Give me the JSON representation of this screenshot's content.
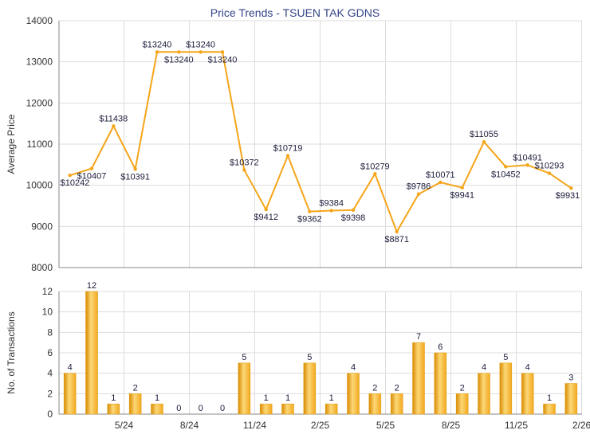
{
  "colors": {
    "line": "#f5a519",
    "bar": "#f2a81d",
    "bar_light": "#fcd878",
    "bar_dark": "#d98a00"
  },
  "chart_data": [
    {
      "type": "line",
      "title": "Price Trends - TSUEN TAK GDNS",
      "ylabel": "Average Price",
      "ylim": [
        8000,
        14000
      ],
      "yticks": [
        8000,
        9000,
        10000,
        11000,
        12000,
        13000,
        14000
      ],
      "xticks": [
        "5/24",
        "8/24",
        "11/24",
        "2/25",
        "5/25",
        "8/25",
        "11/25",
        "2/26"
      ],
      "grid": true,
      "values": [
        10242,
        10407,
        11438,
        10391,
        13240,
        13240,
        13240,
        13240,
        10372,
        9412,
        10719,
        9362,
        9384,
        9398,
        10279,
        8871,
        9786,
        10071,
        9941,
        11055,
        10452,
        10491,
        10293,
        9931
      ],
      "labels": [
        "$10242",
        "$10407",
        "$11438",
        "$10391",
        "$13240",
        "$13240",
        "$13240",
        "$13240",
        "$10372",
        "$9412",
        "$10719",
        "$9362",
        "$9384",
        "$9398",
        "$10279",
        "$8871",
        "$9786",
        "$10071",
        "$9941",
        "$11055",
        "$10452",
        "$10491",
        "$10293",
        "$9931"
      ]
    },
    {
      "type": "bar",
      "ylabel": "No. of Transactions",
      "ylim": [
        0,
        12
      ],
      "yticks": [
        0,
        2,
        4,
        6,
        8,
        10,
        12
      ],
      "xticks": [
        "5/24",
        "8/24",
        "11/24",
        "2/25",
        "5/25",
        "8/25",
        "11/25",
        "2/26"
      ],
      "grid": true,
      "values": [
        4,
        12,
        1,
        2,
        1,
        0,
        0,
        0,
        5,
        1,
        1,
        5,
        1,
        4,
        2,
        2,
        7,
        6,
        2,
        4,
        5,
        4,
        1,
        3
      ]
    }
  ]
}
